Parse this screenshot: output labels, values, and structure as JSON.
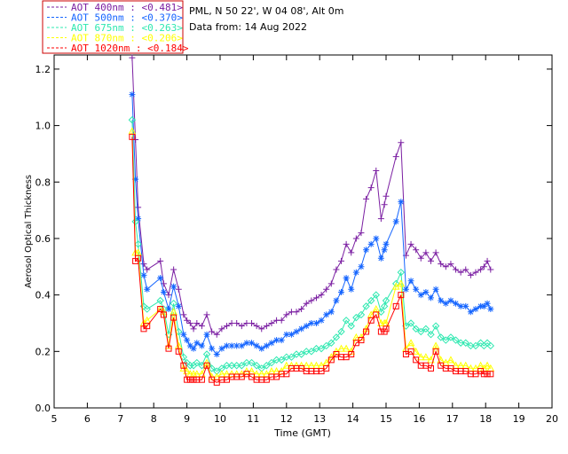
{
  "header": {
    "site": "PML, N 50 22', W 04 08', Alt 0m",
    "date": "Data from: 14 Aug 2022"
  },
  "chart_data": {
    "type": "line",
    "xlabel": "Time (GMT)",
    "ylabel": "Aerosol Optical Thickness",
    "xlim": [
      5,
      20
    ],
    "ylim": [
      0,
      1.25
    ],
    "xticks": [
      "5",
      "6",
      "7",
      "8",
      "9",
      "10",
      "11",
      "12",
      "13",
      "14",
      "15",
      "16",
      "17",
      "18",
      "19",
      "20"
    ],
    "yticks": [
      "0.0",
      "0.2",
      "0.4",
      "0.6",
      "0.8",
      "1.0",
      "1.2"
    ],
    "grid": false,
    "legend_position": "top-left",
    "x": [
      7.35,
      7.45,
      7.53,
      7.7,
      7.8,
      8.2,
      8.3,
      8.45,
      8.6,
      8.75,
      8.9,
      9.0,
      9.1,
      9.2,
      9.3,
      9.45,
      9.6,
      9.75,
      9.9,
      10.05,
      10.2,
      10.35,
      10.5,
      10.65,
      10.8,
      10.95,
      11.1,
      11.25,
      11.4,
      11.55,
      11.7,
      11.85,
      12.0,
      12.15,
      12.3,
      12.45,
      12.6,
      12.75,
      12.9,
      13.05,
      13.2,
      13.35,
      13.5,
      13.65,
      13.8,
      13.95,
      14.1,
      14.25,
      14.4,
      14.55,
      14.7,
      14.85,
      14.95,
      15.0,
      15.3,
      15.45,
      15.6,
      15.75,
      15.9,
      16.05,
      16.2,
      16.35,
      16.5,
      16.65,
      16.8,
      16.95,
      17.1,
      17.25,
      17.4,
      17.55,
      17.7,
      17.85,
      17.95,
      18.05,
      18.15
    ],
    "series": [
      {
        "name": "AOT  400nm : <0.481>",
        "color": "#7b1fa2",
        "marker": "plus",
        "values": [
          1.24,
          0.95,
          0.71,
          0.51,
          0.49,
          0.52,
          0.44,
          0.4,
          0.49,
          0.42,
          0.33,
          0.31,
          0.3,
          0.28,
          0.3,
          0.29,
          0.33,
          0.27,
          0.26,
          0.28,
          0.29,
          0.3,
          0.3,
          0.29,
          0.3,
          0.3,
          0.29,
          0.28,
          0.29,
          0.3,
          0.31,
          0.31,
          0.33,
          0.34,
          0.34,
          0.35,
          0.37,
          0.38,
          0.39,
          0.4,
          0.42,
          0.44,
          0.49,
          0.52,
          0.58,
          0.55,
          0.6,
          0.62,
          0.74,
          0.78,
          0.84,
          0.67,
          0.72,
          0.75,
          0.89,
          0.94,
          0.54,
          0.58,
          0.56,
          0.53,
          0.55,
          0.52,
          0.55,
          0.51,
          0.5,
          0.51,
          0.49,
          0.48,
          0.49,
          0.47,
          0.48,
          0.49,
          0.5,
          0.52,
          0.49
        ]
      },
      {
        "name": "AOT  500nm : <0.370>",
        "color": "#1565ff",
        "marker": "star",
        "values": [
          1.11,
          0.81,
          0.67,
          0.47,
          0.42,
          0.46,
          0.41,
          0.35,
          0.43,
          0.36,
          0.26,
          0.24,
          0.22,
          0.21,
          0.23,
          0.22,
          0.26,
          0.21,
          0.19,
          0.21,
          0.22,
          0.22,
          0.22,
          0.22,
          0.23,
          0.23,
          0.22,
          0.21,
          0.22,
          0.23,
          0.24,
          0.24,
          0.26,
          0.26,
          0.27,
          0.28,
          0.29,
          0.3,
          0.3,
          0.31,
          0.33,
          0.34,
          0.38,
          0.41,
          0.46,
          0.42,
          0.48,
          0.5,
          0.56,
          0.58,
          0.6,
          0.53,
          0.56,
          0.58,
          0.66,
          0.73,
          0.42,
          0.45,
          0.42,
          0.4,
          0.41,
          0.39,
          0.42,
          0.38,
          0.37,
          0.38,
          0.37,
          0.36,
          0.36,
          0.34,
          0.35,
          0.36,
          0.36,
          0.37,
          0.35
        ]
      },
      {
        "name": "AOT  675nm : <0.263>",
        "color": "#2ee8b0",
        "marker": "diamond",
        "values": [
          1.02,
          0.66,
          0.58,
          0.36,
          0.35,
          0.38,
          0.35,
          0.26,
          0.37,
          0.27,
          0.18,
          0.16,
          0.15,
          0.15,
          0.16,
          0.15,
          0.19,
          0.14,
          0.13,
          0.14,
          0.15,
          0.15,
          0.15,
          0.15,
          0.16,
          0.16,
          0.15,
          0.14,
          0.15,
          0.16,
          0.17,
          0.17,
          0.18,
          0.18,
          0.19,
          0.19,
          0.2,
          0.2,
          0.21,
          0.21,
          0.22,
          0.23,
          0.25,
          0.27,
          0.31,
          0.29,
          0.32,
          0.33,
          0.36,
          0.38,
          0.4,
          0.34,
          0.36,
          0.38,
          0.44,
          0.48,
          0.29,
          0.3,
          0.28,
          0.27,
          0.28,
          0.26,
          0.29,
          0.25,
          0.24,
          0.25,
          0.24,
          0.23,
          0.23,
          0.22,
          0.22,
          0.23,
          0.22,
          0.23,
          0.22
        ]
      },
      {
        "name": "AOT  870nm : <0.206>",
        "color": "#ffff00",
        "marker": "triangle",
        "values": [
          0.98,
          0.55,
          0.55,
          0.3,
          0.31,
          0.35,
          0.34,
          0.22,
          0.34,
          0.22,
          0.14,
          0.13,
          0.12,
          0.12,
          0.12,
          0.12,
          0.16,
          0.11,
          0.11,
          0.12,
          0.12,
          0.12,
          0.12,
          0.12,
          0.13,
          0.13,
          0.12,
          0.12,
          0.12,
          0.13,
          0.13,
          0.13,
          0.15,
          0.15,
          0.15,
          0.15,
          0.15,
          0.15,
          0.15,
          0.15,
          0.16,
          0.18,
          0.2,
          0.21,
          0.21,
          0.2,
          0.25,
          0.25,
          0.28,
          0.33,
          0.35,
          0.3,
          0.3,
          0.3,
          0.43,
          0.44,
          0.21,
          0.23,
          0.2,
          0.18,
          0.18,
          0.17,
          0.22,
          0.17,
          0.16,
          0.17,
          0.15,
          0.15,
          0.15,
          0.14,
          0.14,
          0.15,
          0.14,
          0.15,
          0.14
        ]
      },
      {
        "name": "AOT 1020nm : <0.184>",
        "color": "#ff0000",
        "marker": "square",
        "values": [
          0.96,
          0.52,
          0.53,
          0.28,
          0.29,
          0.35,
          0.33,
          0.21,
          0.32,
          0.2,
          0.15,
          0.1,
          0.1,
          0.1,
          0.1,
          0.1,
          0.15,
          0.1,
          0.09,
          0.1,
          0.1,
          0.11,
          0.11,
          0.11,
          0.12,
          0.11,
          0.1,
          0.1,
          0.1,
          0.11,
          0.11,
          0.12,
          0.12,
          0.14,
          0.14,
          0.14,
          0.13,
          0.13,
          0.13,
          0.13,
          0.14,
          0.17,
          0.19,
          0.18,
          0.18,
          0.19,
          0.23,
          0.24,
          0.27,
          0.31,
          0.33,
          0.27,
          0.27,
          0.28,
          0.36,
          0.4,
          0.19,
          0.2,
          0.17,
          0.15,
          0.15,
          0.14,
          0.2,
          0.15,
          0.14,
          0.14,
          0.13,
          0.13,
          0.13,
          0.12,
          0.12,
          0.13,
          0.12,
          0.12,
          0.12
        ]
      }
    ]
  }
}
